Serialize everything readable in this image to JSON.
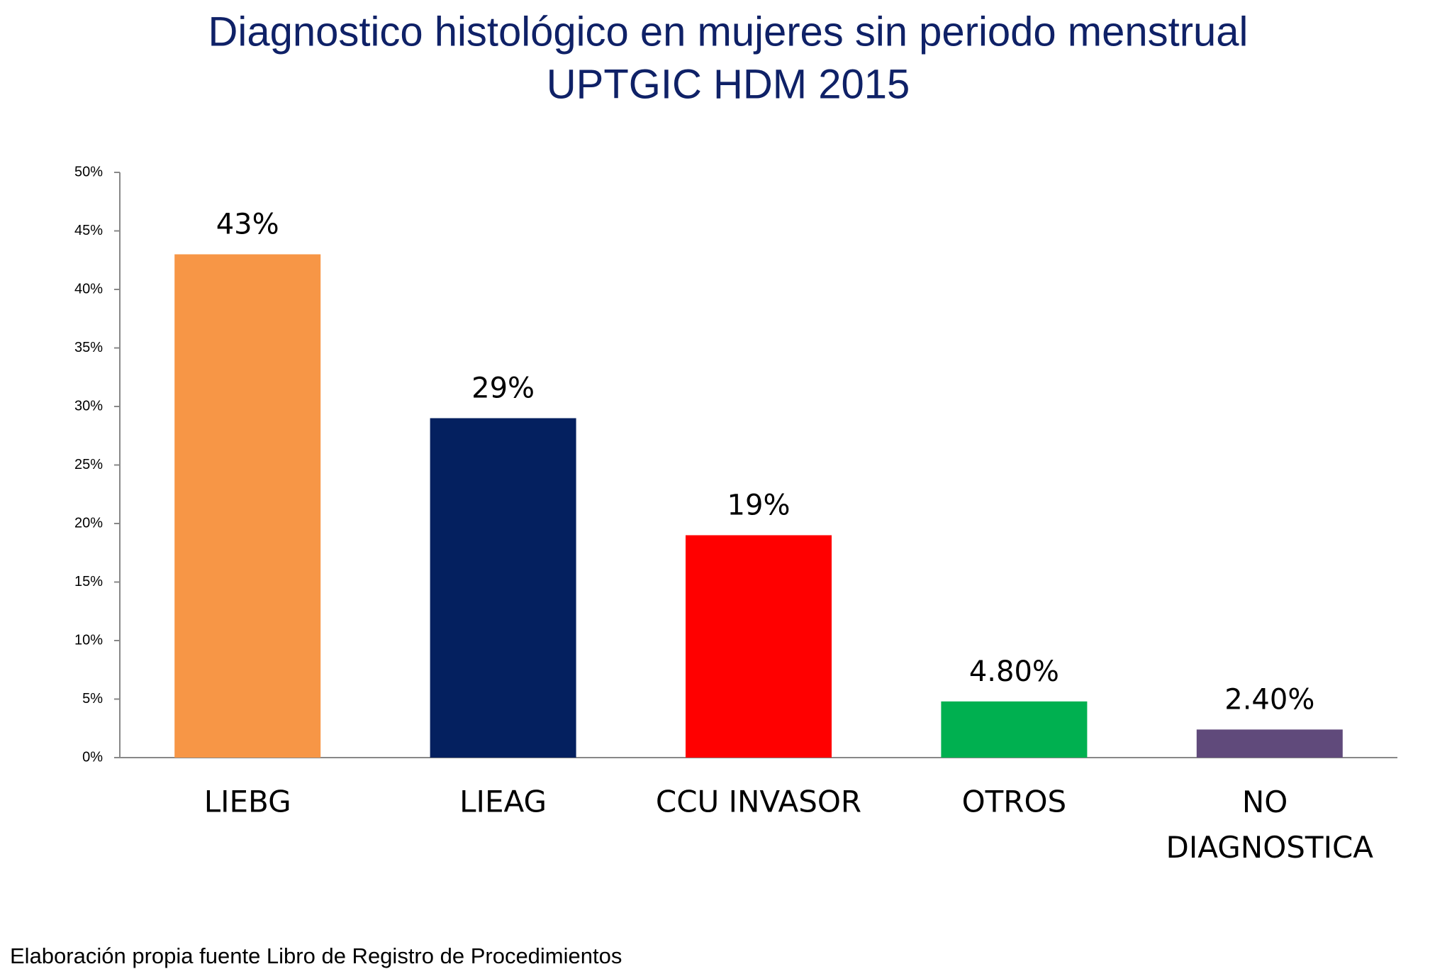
{
  "chart_data": {
    "type": "bar",
    "title": "Diagnostico histológico en mujeres sin periodo menstrual",
    "subtitle": "UPTGIC HDM 2015",
    "categories": [
      "LIEBG",
      "LIEAG",
      "CCU INVASOR",
      "OTROS",
      "NO DIAGNOSTICA"
    ],
    "values": [
      43,
      29,
      19,
      4.8,
      2.4
    ],
    "value_labels": [
      "43%",
      "29%",
      "19%",
      "4.80%",
      "2.40%"
    ],
    "colors": [
      "#f79646",
      "#04205f",
      "#ff0000",
      "#00b050",
      "#604a7b"
    ],
    "ylim": [
      0,
      50
    ],
    "yticks": [
      {
        "value": 0,
        "label": "0%"
      },
      {
        "value": 5,
        "label": "5%"
      },
      {
        "value": 10,
        "label": "10%"
      },
      {
        "value": 15,
        "label": "15%"
      },
      {
        "value": 20,
        "label": "20%"
      },
      {
        "value": 25,
        "label": "25%"
      },
      {
        "value": 30,
        "label": "30%"
      },
      {
        "value": 35,
        "label": "35%"
      },
      {
        "value": 40,
        "label": "40%"
      },
      {
        "value": 45,
        "label": "45%"
      },
      {
        "value": 50,
        "label": "50%"
      }
    ],
    "grid": false,
    "source": "Elaboración propia fuente Libro de Registro de Procedimientos"
  }
}
